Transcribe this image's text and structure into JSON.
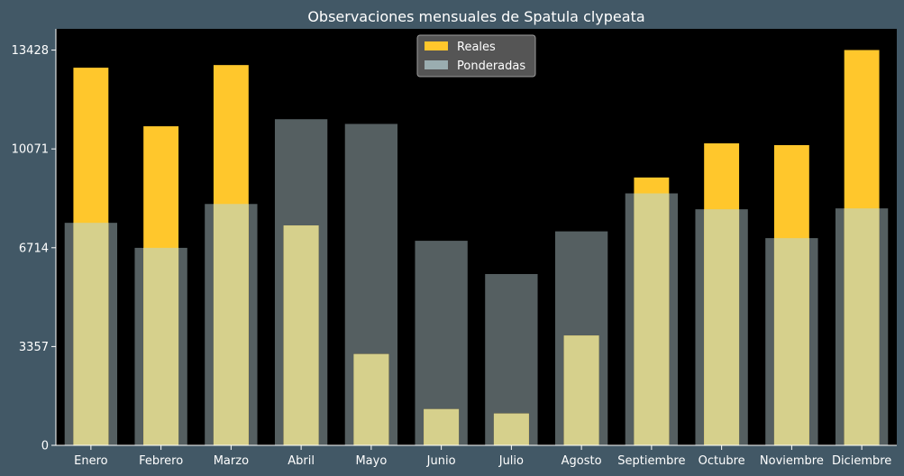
{
  "chart_data": {
    "type": "bar",
    "title": "Observaciones mensuales de Spatula clypeata",
    "xlabel": "",
    "ylabel": "",
    "categories": [
      "Enero",
      "Febrero",
      "Marzo",
      "Abril",
      "Mayo",
      "Junio",
      "Julio",
      "Agosto",
      "Septiembre",
      "Octubre",
      "Noviembre",
      "Diciembre"
    ],
    "series": [
      {
        "name": "Reales",
        "color": "#ffc72c",
        "values": [
          12830,
          10840,
          12920,
          7470,
          3100,
          1230,
          1080,
          3730,
          9100,
          10260,
          10200,
          13430
        ]
      },
      {
        "name": "Ponderadas",
        "color": "#9aadb0",
        "values": [
          7560,
          6710,
          8200,
          11080,
          10920,
          6950,
          5820,
          7270,
          8560,
          8020,
          7040,
          8050
        ]
      }
    ],
    "yticks": [
      0,
      3357,
      6714,
      10071,
      13428
    ],
    "ylim": [
      0,
      14150
    ],
    "legend_position": "top-center",
    "grid": false
  }
}
